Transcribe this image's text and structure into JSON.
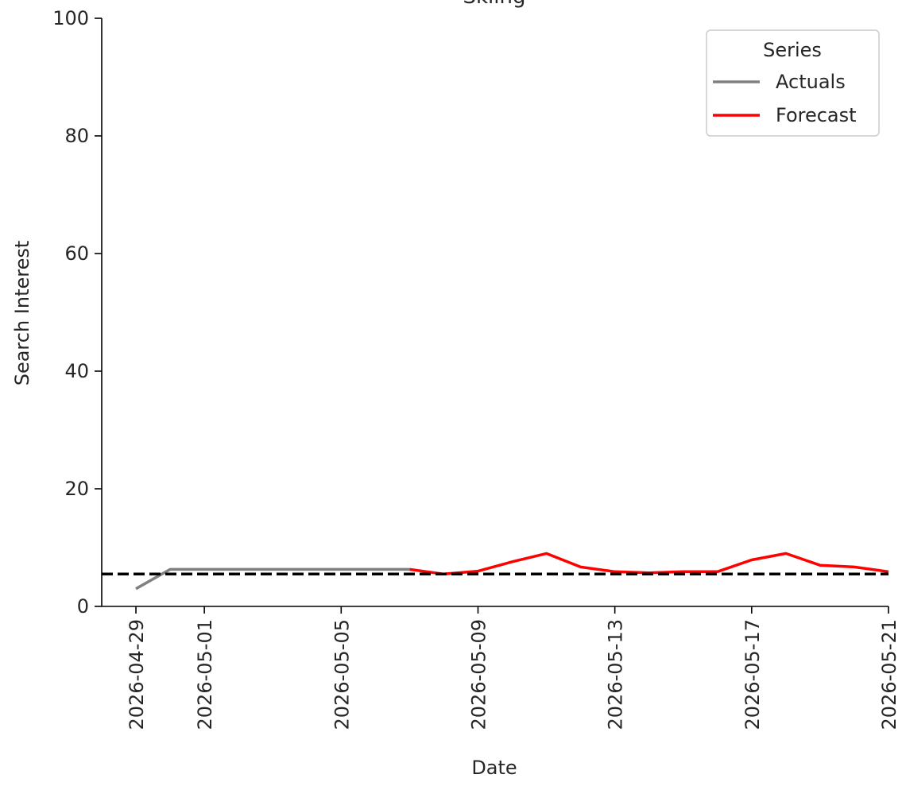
{
  "chart_data": {
    "type": "line",
    "title": "Skiing",
    "xlabel": "Date",
    "ylabel": "Search Interest",
    "ylim": [
      0,
      100
    ],
    "xlim": [
      "2026-04-28",
      "2026-05-21"
    ],
    "yticks": [
      0,
      20,
      40,
      60,
      80,
      100
    ],
    "xticks": [
      "2026-04-29",
      "2026-05-01",
      "2026-05-05",
      "2026-05-09",
      "2026-05-13",
      "2026-05-17",
      "2026-05-21"
    ],
    "grid": false,
    "legend": {
      "title": "Series",
      "position": "top-right"
    },
    "reference_line": {
      "y": 5.5,
      "style": "dashed",
      "color": "#000000"
    },
    "series": [
      {
        "name": "Actuals",
        "color": "#808080",
        "points": [
          {
            "x": "2026-04-29",
            "y": 3
          },
          {
            "x": "2026-04-30",
            "y": 6.3
          },
          {
            "x": "2026-05-01",
            "y": 6.3
          },
          {
            "x": "2026-05-02",
            "y": 6.3
          },
          {
            "x": "2026-05-03",
            "y": 6.3
          },
          {
            "x": "2026-05-04",
            "y": 6.3
          },
          {
            "x": "2026-05-05",
            "y": 6.3
          },
          {
            "x": "2026-05-06",
            "y": 6.3
          },
          {
            "x": "2026-05-07",
            "y": 6.3
          }
        ]
      },
      {
        "name": "Forecast",
        "color": "#ff0000",
        "points": [
          {
            "x": "2026-05-07",
            "y": 6.3
          },
          {
            "x": "2026-05-08",
            "y": 5.5
          },
          {
            "x": "2026-05-09",
            "y": 6
          },
          {
            "x": "2026-05-10",
            "y": 7.6
          },
          {
            "x": "2026-05-11",
            "y": 9
          },
          {
            "x": "2026-05-12",
            "y": 6.7
          },
          {
            "x": "2026-05-13",
            "y": 5.9
          },
          {
            "x": "2026-05-14",
            "y": 5.7
          },
          {
            "x": "2026-05-15",
            "y": 5.9
          },
          {
            "x": "2026-05-16",
            "y": 5.9
          },
          {
            "x": "2026-05-17",
            "y": 7.9
          },
          {
            "x": "2026-05-18",
            "y": 9
          },
          {
            "x": "2026-05-19",
            "y": 7
          },
          {
            "x": "2026-05-20",
            "y": 6.7
          },
          {
            "x": "2026-05-21",
            "y": 5.9
          }
        ]
      }
    ]
  }
}
